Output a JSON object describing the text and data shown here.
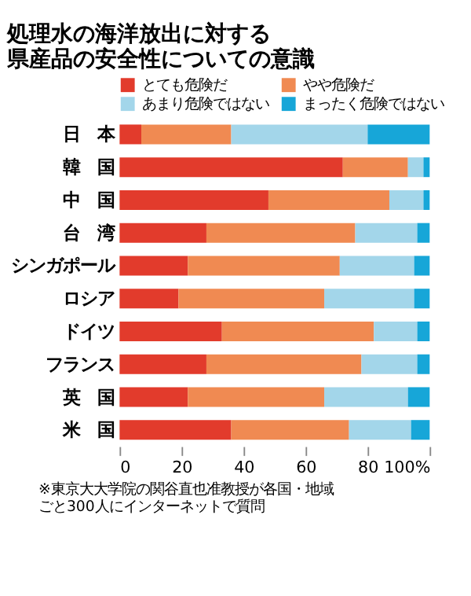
{
  "chart_data": {
    "type": "bar",
    "orientation": "horizontal",
    "stacked": true,
    "title": [
      "処理水の海洋放出に対する",
      "県産品の安全性についての意識"
    ],
    "categories": [
      "日　本",
      "韓　国",
      "中　国",
      "台　湾",
      "シンガポール",
      "ロシア",
      "ドイツ",
      "フランス",
      "英　国",
      "米　国"
    ],
    "series": [
      {
        "name": "とても危険だ",
        "color": "#e23b2c",
        "values": [
          7,
          72,
          48,
          28,
          22,
          19,
          33,
          28,
          22,
          36
        ]
      },
      {
        "name": "やや危険だ",
        "color": "#f08a52",
        "values": [
          29,
          21,
          39,
          48,
          49,
          47,
          49,
          50,
          44,
          38
        ]
      },
      {
        "name": "あまり危険ではない",
        "color": "#a3d6ea",
        "values": [
          44,
          5,
          11,
          20,
          24,
          29,
          14,
          18,
          27,
          20
        ]
      },
      {
        "name": "まったく危険ではない",
        "color": "#17a6d8",
        "values": [
          20,
          2,
          2,
          4,
          5,
          5,
          4,
          4,
          7,
          6
        ]
      }
    ],
    "xlim": [
      0,
      100
    ],
    "xticks": [
      0,
      20,
      40,
      60,
      {
        "value": 100,
        "label": "100%"
      },
      80
    ],
    "grid": false,
    "legend": "top",
    "annotations": [
      "※東京大大学院の関谷直也准教授が各国・地域ごと300人にインターネットで質問"
    ]
  }
}
